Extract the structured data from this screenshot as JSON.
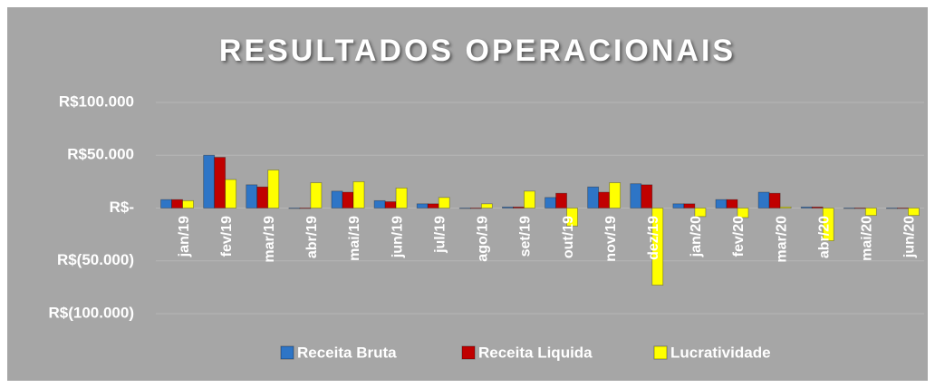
{
  "chart_data": {
    "type": "bar",
    "title": "RESULTADOS OPERACIONAIS",
    "categories": [
      "jan/19",
      "fev/19",
      "mar/19",
      "abr/19",
      "mai/19",
      "jun/19",
      "jul/19",
      "ago/19",
      "set/19",
      "out/19",
      "nov/19",
      "dez/19",
      "jan/20",
      "fev/20",
      "mar/20",
      "abr/20",
      "mai/20",
      "jun/20"
    ],
    "series": [
      {
        "name": "Receita Bruta",
        "color": "#2e75c6",
        "values": [
          8000,
          50000,
          22000,
          0,
          16000,
          7000,
          4000,
          0,
          1000,
          10000,
          20000,
          23000,
          4000,
          8000,
          15000,
          1000,
          0,
          0
        ]
      },
      {
        "name": "Receita Liquida",
        "color": "#c00000",
        "values": [
          8000,
          48000,
          20000,
          0,
          15000,
          6000,
          4000,
          0,
          1000,
          14000,
          15000,
          22000,
          4000,
          8000,
          14000,
          1000,
          0,
          0
        ]
      },
      {
        "name": "Lucratividade",
        "color": "#ffff00",
        "values": [
          7000,
          27000,
          36000,
          24000,
          25000,
          19000,
          10000,
          4000,
          16000,
          -17000,
          24000,
          -73000,
          -8000,
          -9000,
          1000,
          -31000,
          -7000,
          -7000
        ]
      }
    ],
    "ylim": [
      -100000,
      100000
    ],
    "yticks": [
      {
        "value": -100000,
        "label": "R$(100.000)"
      },
      {
        "value": -50000,
        "label": "R$(50.000)"
      },
      {
        "value": 0,
        "label": "R$-"
      },
      {
        "value": 50000,
        "label": "R$50.000"
      },
      {
        "value": 100000,
        "label": "R$100.000"
      }
    ],
    "grid": true,
    "legend": "bottom"
  }
}
